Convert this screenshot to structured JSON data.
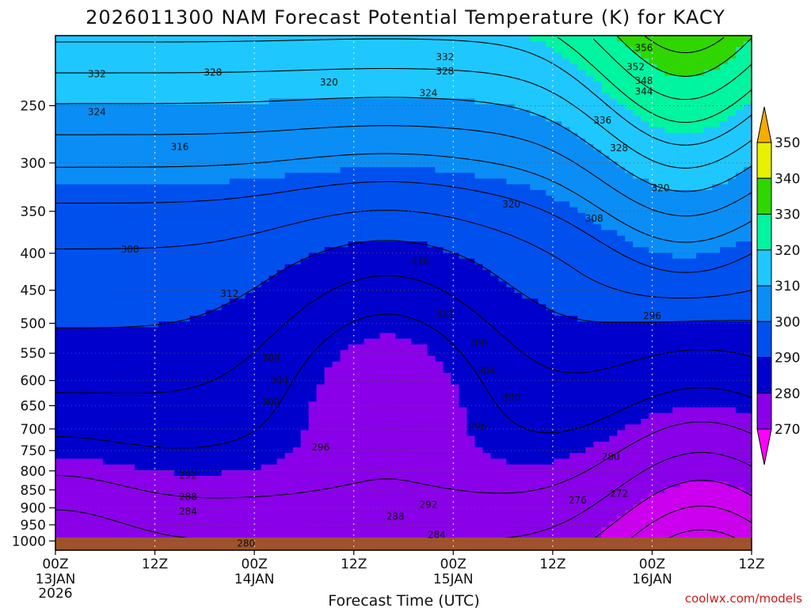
{
  "chart_data": {
    "type": "heatmap",
    "title": "2026011300 NAM Forecast Potential Temperature (K) for KACY",
    "xlabel": "Forecast Time (UTC)",
    "ylabel": "",
    "x_ticks": [
      "00Z",
      "12Z",
      "00Z",
      "12Z",
      "00Z",
      "12Z",
      "00Z",
      "12Z"
    ],
    "x_date_labels": [
      {
        "at_tick": 0,
        "lines": [
          "13JAN",
          "2026"
        ]
      },
      {
        "at_tick": 2,
        "lines": [
          "14JAN"
        ]
      },
      {
        "at_tick": 4,
        "lines": [
          "15JAN"
        ]
      },
      {
        "at_tick": 6,
        "lines": [
          "16JAN"
        ]
      }
    ],
    "x_range_hours": [
      0,
      84
    ],
    "y_ticks": [
      250,
      300,
      350,
      400,
      450,
      500,
      550,
      600,
      650,
      700,
      750,
      800,
      850,
      900,
      950,
      1000
    ],
    "y_range_hpa": [
      200,
      1030
    ],
    "y_scale": "log-pressure, inverted",
    "grid": true,
    "colorbar": {
      "levels": [
        270,
        280,
        290,
        300,
        310,
        320,
        330,
        340,
        350
      ],
      "colors": [
        "#ff00ff",
        "#cc00ee",
        "#8a00e8",
        "#0000cc",
        "#0050ee",
        "#0a8ef5",
        "#1ec8ff",
        "#00f5a0",
        "#30d600",
        "#e6f000",
        "#f5ac00"
      ]
    },
    "contour_labels": [
      {
        "text": "356",
        "x": 71,
        "p": 208
      },
      {
        "text": "352",
        "x": 70,
        "p": 221
      },
      {
        "text": "348",
        "x": 71,
        "p": 231
      },
      {
        "text": "344",
        "x": 71,
        "p": 239
      },
      {
        "text": "336",
        "x": 66,
        "p": 262
      },
      {
        "text": "332",
        "x": 5,
        "p": 226
      },
      {
        "text": "328",
        "x": 19,
        "p": 225
      },
      {
        "text": "324",
        "x": 5,
        "p": 255
      },
      {
        "text": "320",
        "x": 33,
        "p": 232
      },
      {
        "text": "332",
        "x": 47,
        "p": 214
      },
      {
        "text": "328",
        "x": 47,
        "p": 224
      },
      {
        "text": "324",
        "x": 45,
        "p": 240
      },
      {
        "text": "316",
        "x": 15,
        "p": 285
      },
      {
        "text": "328",
        "x": 68,
        "p": 286
      },
      {
        "text": "320",
        "x": 73,
        "p": 325
      },
      {
        "text": "320",
        "x": 55,
        "p": 342
      },
      {
        "text": "308",
        "x": 65,
        "p": 358
      },
      {
        "text": "308",
        "x": 9,
        "p": 395
      },
      {
        "text": "316",
        "x": 44,
        "p": 410
      },
      {
        "text": "312",
        "x": 21,
        "p": 455
      },
      {
        "text": "312",
        "x": 47,
        "p": 486
      },
      {
        "text": "296",
        "x": 72,
        "p": 488
      },
      {
        "text": "308",
        "x": 26,
        "p": 558
      },
      {
        "text": "308",
        "x": 51,
        "p": 532
      },
      {
        "text": "304",
        "x": 27,
        "p": 600
      },
      {
        "text": "304",
        "x": 52,
        "p": 582
      },
      {
        "text": "300",
        "x": 26,
        "p": 643
      },
      {
        "text": "300",
        "x": 55,
        "p": 633
      },
      {
        "text": "296",
        "x": 51,
        "p": 695
      },
      {
        "text": "296",
        "x": 32,
        "p": 742
      },
      {
        "text": "292",
        "x": 16,
        "p": 812
      },
      {
        "text": "280",
        "x": 67,
        "p": 765
      },
      {
        "text": "288",
        "x": 16,
        "p": 869
      },
      {
        "text": "276",
        "x": 63,
        "p": 879
      },
      {
        "text": "272",
        "x": 68,
        "p": 860
      },
      {
        "text": "292",
        "x": 45,
        "p": 891
      },
      {
        "text": "284",
        "x": 16,
        "p": 910
      },
      {
        "text": "288",
        "x": 41,
        "p": 925
      },
      {
        "text": "284",
        "x": 46,
        "p": 980
      },
      {
        "text": "280",
        "x": 23,
        "p": 1008
      }
    ]
  },
  "credit": "coolwx.com/models",
  "colors": {
    "ground": "#a0522d",
    "frame": "#000000",
    "grid": "#555555"
  }
}
